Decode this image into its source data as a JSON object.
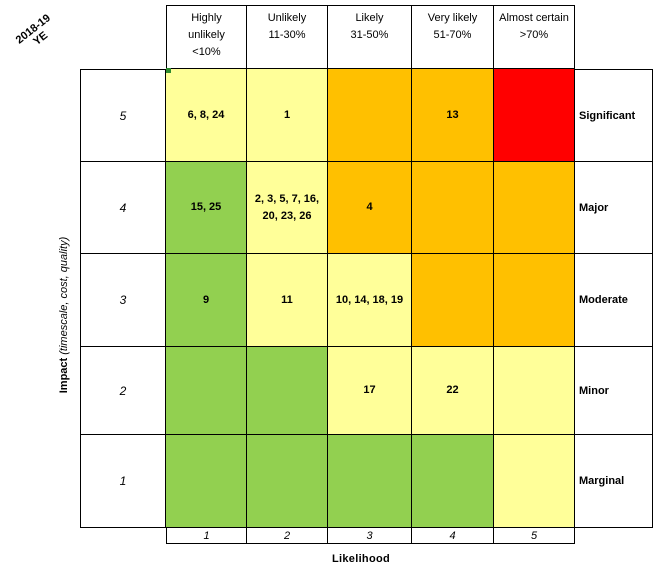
{
  "corner_label": {
    "line1": "2018-19",
    "line2": "YE"
  },
  "y_axis": {
    "title_bold": "Impact",
    "title_italic": "(timescale, cost, quality)"
  },
  "x_axis": {
    "title": "Likelihood"
  },
  "likelihood_headers": [
    {
      "name1": "Highly",
      "name2": "unlikely",
      "range": "<10%"
    },
    {
      "name1": "",
      "name2": "Unlikely",
      "range": "11-30%"
    },
    {
      "name1": "",
      "name2": "Likely",
      "range": "31-50%"
    },
    {
      "name1": "",
      "name2": "Very likely",
      "range": "51-70%"
    },
    {
      "name1": "",
      "name2": "Almost certain",
      "range": ">70%"
    }
  ],
  "likelihood_scores": [
    "1",
    "2",
    "3",
    "4",
    "5"
  ],
  "impact_rows": [
    {
      "score": "5",
      "level": "Significant",
      "cells": [
        {
          "risks": "6, 8, 24",
          "color": "#ffff99"
        },
        {
          "risks": "1",
          "color": "#ffff99"
        },
        {
          "risks": "",
          "color": "#ffc000"
        },
        {
          "risks": "13",
          "color": "#ffc000"
        },
        {
          "risks": "",
          "color": "#ff0000"
        }
      ]
    },
    {
      "score": "4",
      "level": "Major",
      "cells": [
        {
          "risks": "15, 25",
          "color": "#92d050"
        },
        {
          "risks": "2, 3, 5, 7, 16, 20, 23, 26",
          "color": "#ffff99"
        },
        {
          "risks": "4",
          "color": "#ffc000"
        },
        {
          "risks": "",
          "color": "#ffc000"
        },
        {
          "risks": "",
          "color": "#ffc000"
        }
      ]
    },
    {
      "score": "3",
      "level": "Moderate",
      "cells": [
        {
          "risks": "9",
          "color": "#92d050"
        },
        {
          "risks": "11",
          "color": "#ffff99"
        },
        {
          "risks": "10, 14, 18, 19",
          "color": "#ffff99"
        },
        {
          "risks": "",
          "color": "#ffc000"
        },
        {
          "risks": "",
          "color": "#ffc000"
        }
      ]
    },
    {
      "score": "2",
      "level": "Minor",
      "cells": [
        {
          "risks": "",
          "color": "#92d050"
        },
        {
          "risks": "",
          "color": "#92d050"
        },
        {
          "risks": "17",
          "color": "#ffff99"
        },
        {
          "risks": "22",
          "color": "#ffff99"
        },
        {
          "risks": "",
          "color": "#ffff99"
        }
      ]
    },
    {
      "score": "1",
      "level": "Marginal",
      "cells": [
        {
          "risks": "",
          "color": "#92d050"
        },
        {
          "risks": "",
          "color": "#92d050"
        },
        {
          "risks": "",
          "color": "#92d050"
        },
        {
          "risks": "",
          "color": "#92d050"
        },
        {
          "risks": "",
          "color": "#ffff99"
        }
      ]
    }
  ]
}
